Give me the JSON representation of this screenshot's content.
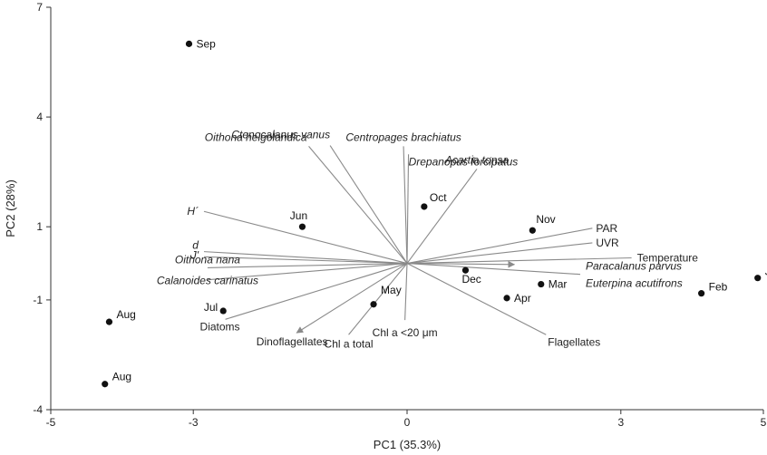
{
  "chart_data": {
    "type": "biplot",
    "xlabel": "PC1 (35.3%)",
    "ylabel": "PC2 (28%)",
    "xlim": [
      -5,
      5
    ],
    "ylim": [
      -4,
      7
    ],
    "xticks": [
      -5,
      -3,
      0,
      3,
      5
    ],
    "yticks": [
      -4,
      -1,
      1,
      4,
      7
    ],
    "points": [
      {
        "label": "Sep",
        "x": -3.06,
        "y": 6.0
      },
      {
        "label": "Jun",
        "x": -1.47,
        "y": 1.0
      },
      {
        "label": "Oct",
        "x": 0.24,
        "y": 1.55
      },
      {
        "label": "Nov",
        "x": 1.76,
        "y": 0.9
      },
      {
        "label": "Jan",
        "x": 4.92,
        "y": -0.4
      },
      {
        "label": "Feb",
        "x": 4.13,
        "y": -0.82
      },
      {
        "label": "Mar",
        "x": 1.88,
        "y": -0.57
      },
      {
        "label": "Apr",
        "x": 1.4,
        "y": -0.95
      },
      {
        "label": "Dec",
        "x": 0.82,
        "y": -0.19
      },
      {
        "label": "May",
        "x": -0.47,
        "y": -1.12
      },
      {
        "label": "Jul",
        "x": -2.58,
        "y": -1.3
      },
      {
        "label": "Aug",
        "x": -4.18,
        "y": -1.6
      },
      {
        "label": "Aug",
        "x": -4.24,
        "y": -3.3
      }
    ],
    "vectors": [
      {
        "label": "Centropages brachiatus",
        "italic": true,
        "x": -0.05,
        "y": 3.2
      },
      {
        "label": "Drepanopus forcipatus",
        "italic": true,
        "x": 0.02,
        "y": 2.98
      },
      {
        "label": "Ctenocalanus vanus",
        "italic": true,
        "x": -1.08,
        "y": 3.22
      },
      {
        "label": "Oithona helgolandica",
        "italic": true,
        "x": -1.38,
        "y": 3.2
      },
      {
        "label": "Acartia tonsa",
        "italic": true,
        "x": 0.98,
        "y": 2.58
      },
      {
        "label": "H´",
        "italic": true,
        "x": -2.85,
        "y": 1.42
      },
      {
        "label": "d",
        "italic": true,
        "x": -2.85,
        "y": 0.32
      },
      {
        "label": "J'",
        "italic": true,
        "x": -2.85,
        "y": 0.18
      },
      {
        "label": "Oithona nana",
        "italic": true,
        "x": -2.8,
        "y": -0.12
      },
      {
        "label": "Calanoides carinatus",
        "italic": true,
        "x": -2.8,
        "y": -0.45
      },
      {
        "label": "Diatoms",
        "italic": false,
        "x": -2.55,
        "y": -1.53
      },
      {
        "label": "Dinoflagellates",
        "italic": false,
        "x": -1.55,
        "y": -1.9
      },
      {
        "label": "Chl a total",
        "italic": false,
        "x": -0.82,
        "y": -1.95
      },
      {
        "label": "Chl a <20 μm",
        "italic": false,
        "x": -0.03,
        "y": -1.55
      },
      {
        "label": "Flagellates",
        "italic": false,
        "x": 1.95,
        "y": -1.95
      },
      {
        "label": "PAR",
        "italic": false,
        "x": 2.6,
        "y": 0.96
      },
      {
        "label": "UVR",
        "italic": false,
        "x": 2.6,
        "y": 0.56
      },
      {
        "label": "Temperature",
        "italic": false,
        "x": 3.15,
        "y": 0.15
      },
      {
        "label": "Paracalanus parvus",
        "italic": true,
        "x": 2.43,
        "y": -0.05
      },
      {
        "label": "Euterpina acutifrons",
        "italic": true,
        "x": 2.43,
        "y": -0.3
      }
    ]
  }
}
